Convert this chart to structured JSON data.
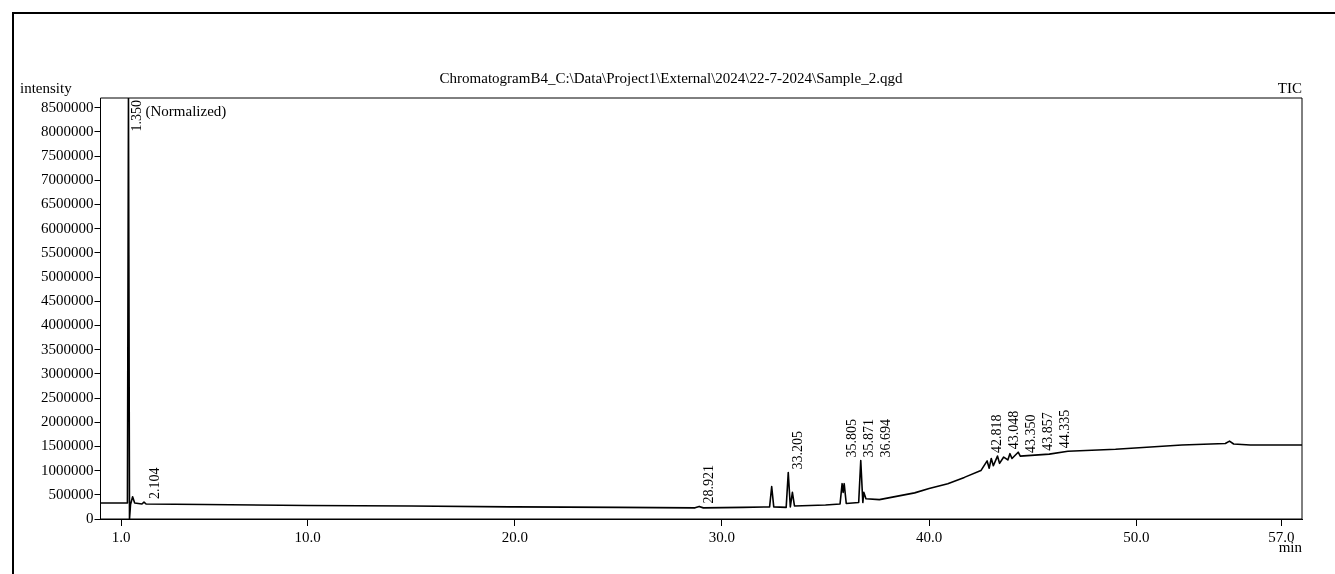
{
  "chart_data": {
    "type": "line",
    "title": "ChromatogramB4_C:\\Data\\Project1\\External\\2024\\22-7-2024\\Sample_2.qgd",
    "xlabel": "min",
    "ylabel": "intensity",
    "xlim": [
      0.0,
      58.0
    ],
    "ylim": [
      0,
      8700000
    ],
    "xticks": [
      {
        "value": 1,
        "label": "1.0"
      },
      {
        "value": 10,
        "label": "10.0"
      },
      {
        "value": 20,
        "label": "20.0"
      },
      {
        "value": 30,
        "label": "30.0"
      },
      {
        "value": 40,
        "label": "40.0"
      },
      {
        "value": 50,
        "label": "50.0"
      },
      {
        "value": 57,
        "label": "57.0"
      }
    ],
    "yticks": [
      0,
      500000,
      1000000,
      1500000,
      2000000,
      2500000,
      3000000,
      3500000,
      4000000,
      4500000,
      5000000,
      5500000,
      6000000,
      6500000,
      7000000,
      7500000,
      8000000,
      8500000
    ],
    "grid": false,
    "legend": "top right",
    "marker": "none",
    "line_style": "solid",
    "series": [
      {
        "name": "TIC",
        "color": "#000000",
        "x": [
          0.0,
          1.3,
          1.35,
          1.4,
          1.45,
          1.55,
          1.65,
          2.0,
          2.1,
          2.2,
          5,
          10,
          15,
          20,
          25,
          28.7,
          28.9,
          29.1,
          31,
          32.3,
          32.4,
          32.5,
          33.1,
          33.2,
          33.3,
          33.4,
          33.5,
          35.0,
          35.7,
          35.8,
          35.85,
          35.9,
          36.0,
          36.6,
          36.7,
          36.8,
          36.85,
          36.95,
          37.6,
          39.3,
          40.0,
          40.9,
          41.7,
          42.5,
          42.8,
          42.9,
          43.0,
          43.1,
          43.3,
          43.4,
          43.6,
          43.8,
          43.9,
          44.0,
          44.3,
          44.4,
          45.8,
          46.7,
          49.0,
          52.2,
          54.3,
          54.5,
          54.7,
          55.5,
          58.0
        ],
        "values": [
          330000,
          330000,
          8700000,
          0,
          300000,
          460000,
          330000,
          310000,
          350000,
          310000,
          300000,
          280000,
          270000,
          250000,
          240000,
          230000,
          260000,
          230000,
          240000,
          250000,
          670000,
          250000,
          240000,
          960000,
          250000,
          550000,
          270000,
          290000,
          310000,
          730000,
          550000,
          730000,
          320000,
          340000,
          1210000,
          340000,
          550000,
          420000,
          400000,
          540000,
          630000,
          730000,
          860000,
          1000000,
          1200000,
          1050000,
          1250000,
          1100000,
          1300000,
          1150000,
          1280000,
          1220000,
          1350000,
          1250000,
          1380000,
          1300000,
          1340000,
          1400000,
          1440000,
          1530000,
          1560000,
          1610000,
          1550000,
          1530000,
          1530000
        ]
      }
    ],
    "annotations": [
      "(Normalized)",
      {
        "text": "1.350",
        "x": 1.35,
        "y": 8700000
      },
      {
        "text": "2.104",
        "x": 2.104,
        "y": 350000
      },
      {
        "text": "28.921",
        "x": 28.921,
        "y": 260000
      },
      {
        "text": "33.205",
        "x": 33.205,
        "y": 960000
      },
      {
        "text": "35.805",
        "x": 35.805,
        "y": 730000
      },
      {
        "text": "35.871",
        "x": 35.871,
        "y": 730000
      },
      {
        "text": "36.694",
        "x": 36.694,
        "y": 1210000
      },
      {
        "text": "42.818",
        "x": 42.818,
        "y": 1200000
      },
      {
        "text": "43.048",
        "x": 43.048,
        "y": 1250000
      },
      {
        "text": "43.350",
        "x": 43.35,
        "y": 1300000
      },
      {
        "text": "43.857",
        "x": 43.857,
        "y": 1350000
      },
      {
        "text": "44.335",
        "x": 44.335,
        "y": 1380000
      }
    ]
  }
}
